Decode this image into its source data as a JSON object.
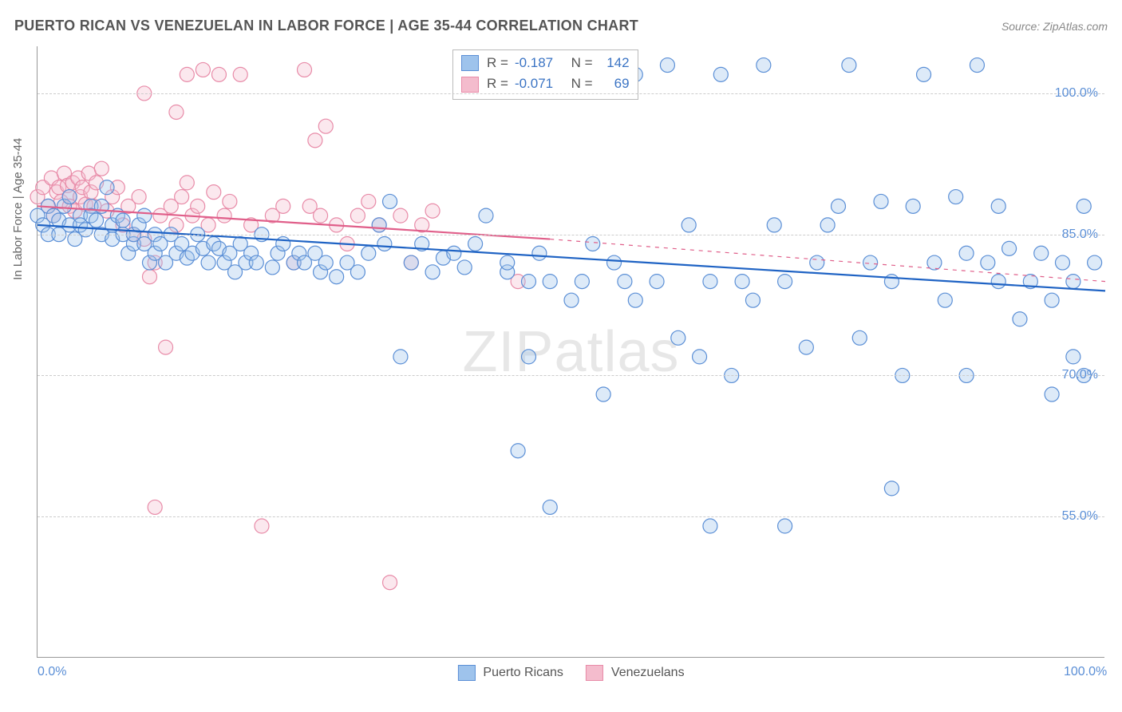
{
  "title": "PUERTO RICAN VS VENEZUELAN IN LABOR FORCE | AGE 35-44 CORRELATION CHART",
  "source": "Source: ZipAtlas.com",
  "ylabel": "In Labor Force | Age 35-44",
  "watermark_a": "ZIP",
  "watermark_b": "atlas",
  "chart": {
    "type": "scatter",
    "background_color": "#ffffff",
    "grid_color": "#cccccc",
    "axis_color": "#999999",
    "tick_label_color": "#5b8fd6",
    "xlim": [
      0,
      100
    ],
    "ylim": [
      40,
      105
    ],
    "yticks": [
      {
        "v": 55.0,
        "label": "55.0%"
      },
      {
        "v": 70.0,
        "label": "70.0%"
      },
      {
        "v": 85.0,
        "label": "85.0%"
      },
      {
        "v": 100.0,
        "label": "100.0%"
      }
    ],
    "xticks": [
      {
        "v": 0.0,
        "label": "0.0%"
      },
      {
        "v": 100.0,
        "label": "100.0%"
      }
    ],
    "marker_radius": 9,
    "marker_fill_opacity": 0.35,
    "marker_stroke_width": 1.2,
    "line_width": 2.2,
    "series": [
      {
        "key": "puerto_ricans",
        "label": "Puerto Ricans",
        "color_fill": "#9ec3ec",
        "color_stroke": "#5b8fd6",
        "line_color": "#1f63c4",
        "r": "-0.187",
        "n": "142",
        "trend_solid": {
          "x1": 0,
          "y1": 86.0,
          "x2": 100,
          "y2": 79.0
        },
        "points": [
          [
            0,
            87
          ],
          [
            0.5,
            86
          ],
          [
            1,
            88
          ],
          [
            1,
            85
          ],
          [
            1.5,
            87
          ],
          [
            2,
            85
          ],
          [
            2,
            86.5
          ],
          [
            2.5,
            88
          ],
          [
            3,
            86
          ],
          [
            3,
            89
          ],
          [
            3.5,
            84.5
          ],
          [
            4,
            87
          ],
          [
            4,
            86
          ],
          [
            4.5,
            85.5
          ],
          [
            5,
            88
          ],
          [
            5,
            87
          ],
          [
            5.5,
            86.5
          ],
          [
            6,
            85
          ],
          [
            6,
            88
          ],
          [
            6.5,
            90
          ],
          [
            7,
            84.5
          ],
          [
            7,
            86
          ],
          [
            7.5,
            87
          ],
          [
            8,
            85
          ],
          [
            8,
            86.5
          ],
          [
            8.5,
            83
          ],
          [
            9,
            84
          ],
          [
            9,
            85
          ],
          [
            9.5,
            86
          ],
          [
            10,
            87
          ],
          [
            10,
            84
          ],
          [
            10.5,
            82
          ],
          [
            11,
            85
          ],
          [
            11,
            83
          ],
          [
            11.5,
            84
          ],
          [
            12,
            82
          ],
          [
            12.5,
            85
          ],
          [
            13,
            83
          ],
          [
            13.5,
            84
          ],
          [
            14,
            82.5
          ],
          [
            14.5,
            83
          ],
          [
            15,
            85
          ],
          [
            15.5,
            83.5
          ],
          [
            16,
            82
          ],
          [
            16.5,
            84
          ],
          [
            17,
            83.5
          ],
          [
            17.5,
            82
          ],
          [
            18,
            83
          ],
          [
            18.5,
            81
          ],
          [
            19,
            84
          ],
          [
            19.5,
            82
          ],
          [
            20,
            83
          ],
          [
            20.5,
            82
          ],
          [
            21,
            85
          ],
          [
            22,
            81.5
          ],
          [
            22.5,
            83
          ],
          [
            23,
            84
          ],
          [
            24,
            82
          ],
          [
            24.5,
            83
          ],
          [
            25,
            82
          ],
          [
            26,
            83
          ],
          [
            26.5,
            81
          ],
          [
            27,
            82
          ],
          [
            28,
            80.5
          ],
          [
            29,
            82
          ],
          [
            30,
            81
          ],
          [
            31,
            83
          ],
          [
            32,
            86
          ],
          [
            32.5,
            84
          ],
          [
            33,
            88.5
          ],
          [
            34,
            72
          ],
          [
            35,
            82
          ],
          [
            36,
            84
          ],
          [
            37,
            81
          ],
          [
            38,
            82.5
          ],
          [
            39,
            83
          ],
          [
            40,
            81.5
          ],
          [
            41,
            84
          ],
          [
            42,
            87
          ],
          [
            43,
            102
          ],
          [
            44,
            81
          ],
          [
            44,
            82
          ],
          [
            45,
            62
          ],
          [
            45,
            103
          ],
          [
            46,
            72
          ],
          [
            46,
            80
          ],
          [
            47,
            83
          ],
          [
            48,
            56
          ],
          [
            48,
            80
          ],
          [
            49,
            102
          ],
          [
            50,
            78
          ],
          [
            51,
            80
          ],
          [
            52,
            84
          ],
          [
            53,
            68
          ],
          [
            54,
            82
          ],
          [
            55,
            80
          ],
          [
            56,
            78
          ],
          [
            56,
            102
          ],
          [
            58,
            80
          ],
          [
            59,
            103
          ],
          [
            60,
            74
          ],
          [
            61,
            86
          ],
          [
            62,
            72
          ],
          [
            63,
            80
          ],
          [
            63,
            54
          ],
          [
            64,
            102
          ],
          [
            65,
            70
          ],
          [
            66,
            80
          ],
          [
            67,
            78
          ],
          [
            68,
            103
          ],
          [
            69,
            86
          ],
          [
            70,
            54
          ],
          [
            70,
            80
          ],
          [
            72,
            73
          ],
          [
            73,
            82
          ],
          [
            74,
            86
          ],
          [
            75,
            88
          ],
          [
            76,
            103
          ],
          [
            77,
            74
          ],
          [
            78,
            82
          ],
          [
            79,
            88.5
          ],
          [
            80,
            58
          ],
          [
            80,
            80
          ],
          [
            81,
            70
          ],
          [
            82,
            88
          ],
          [
            83,
            102
          ],
          [
            84,
            82
          ],
          [
            85,
            78
          ],
          [
            86,
            89
          ],
          [
            87,
            70
          ],
          [
            87,
            83
          ],
          [
            88,
            103
          ],
          [
            89,
            82
          ],
          [
            90,
            88
          ],
          [
            90,
            80
          ],
          [
            91,
            83.5
          ],
          [
            92,
            76
          ],
          [
            93,
            80
          ],
          [
            94,
            83
          ],
          [
            95,
            78
          ],
          [
            95,
            68
          ],
          [
            96,
            82
          ],
          [
            97,
            72
          ],
          [
            97,
            80
          ],
          [
            98,
            88
          ],
          [
            98,
            70
          ],
          [
            99,
            82
          ]
        ]
      },
      {
        "key": "venezuelans",
        "label": "Venezuelans",
        "color_fill": "#f4bccd",
        "color_stroke": "#e88ba8",
        "line_color": "#e05f8a",
        "r": "-0.071",
        "n": "69",
        "trend_solid": {
          "x1": 0,
          "y1": 88.0,
          "x2": 48,
          "y2": 84.5
        },
        "trend_dashed": {
          "x1": 48,
          "y1": 84.5,
          "x2": 100,
          "y2": 80.0
        },
        "points": [
          [
            0,
            89
          ],
          [
            0.5,
            90
          ],
          [
            1,
            88
          ],
          [
            1.3,
            91
          ],
          [
            1.5,
            87
          ],
          [
            1.8,
            89.5
          ],
          [
            2,
            90
          ],
          [
            2.2,
            88.5
          ],
          [
            2.5,
            91.5
          ],
          [
            2.8,
            90.2
          ],
          [
            3,
            89
          ],
          [
            3,
            88
          ],
          [
            3.3,
            90.5
          ],
          [
            3.5,
            87.5
          ],
          [
            3.8,
            91
          ],
          [
            4,
            89
          ],
          [
            4.2,
            90
          ],
          [
            4.5,
            88.2
          ],
          [
            4.8,
            91.5
          ],
          [
            5,
            89.5
          ],
          [
            5.3,
            88
          ],
          [
            5.5,
            90.5
          ],
          [
            6,
            92
          ],
          [
            6.5,
            87.5
          ],
          [
            7,
            89
          ],
          [
            7.5,
            90
          ],
          [
            8,
            86
          ],
          [
            8.5,
            88
          ],
          [
            9,
            85
          ],
          [
            9.5,
            89
          ],
          [
            10,
            84.5
          ],
          [
            10,
            100
          ],
          [
            10.5,
            80.5
          ],
          [
            11,
            82
          ],
          [
            11,
            56
          ],
          [
            11.5,
            87
          ],
          [
            12,
            73
          ],
          [
            12.5,
            88
          ],
          [
            13,
            86
          ],
          [
            13,
            98
          ],
          [
            13.5,
            89
          ],
          [
            14,
            90.5
          ],
          [
            14,
            102
          ],
          [
            14.5,
            87
          ],
          [
            15,
            88
          ],
          [
            15.5,
            102.5
          ],
          [
            16,
            86
          ],
          [
            16.5,
            89.5
          ],
          [
            17,
            102
          ],
          [
            17.5,
            87
          ],
          [
            18,
            88.5
          ],
          [
            19,
            102
          ],
          [
            20,
            86
          ],
          [
            21,
            54
          ],
          [
            22,
            87
          ],
          [
            23,
            88
          ],
          [
            24,
            82
          ],
          [
            25,
            102.5
          ],
          [
            25.5,
            88
          ],
          [
            26,
            95
          ],
          [
            26.5,
            87
          ],
          [
            27,
            96.5
          ],
          [
            28,
            86
          ],
          [
            29,
            84
          ],
          [
            30,
            87
          ],
          [
            31,
            88.5
          ],
          [
            32,
            86
          ],
          [
            33,
            48
          ],
          [
            34,
            87
          ],
          [
            35,
            82
          ],
          [
            36,
            86
          ],
          [
            37,
            87.5
          ],
          [
            45,
            80
          ]
        ]
      }
    ]
  },
  "legend": {
    "items": [
      {
        "label": "Puerto Ricans",
        "fill": "#9ec3ec",
        "stroke": "#5b8fd6"
      },
      {
        "label": "Venezuelans",
        "fill": "#f4bccd",
        "stroke": "#e88ba8"
      }
    ]
  }
}
